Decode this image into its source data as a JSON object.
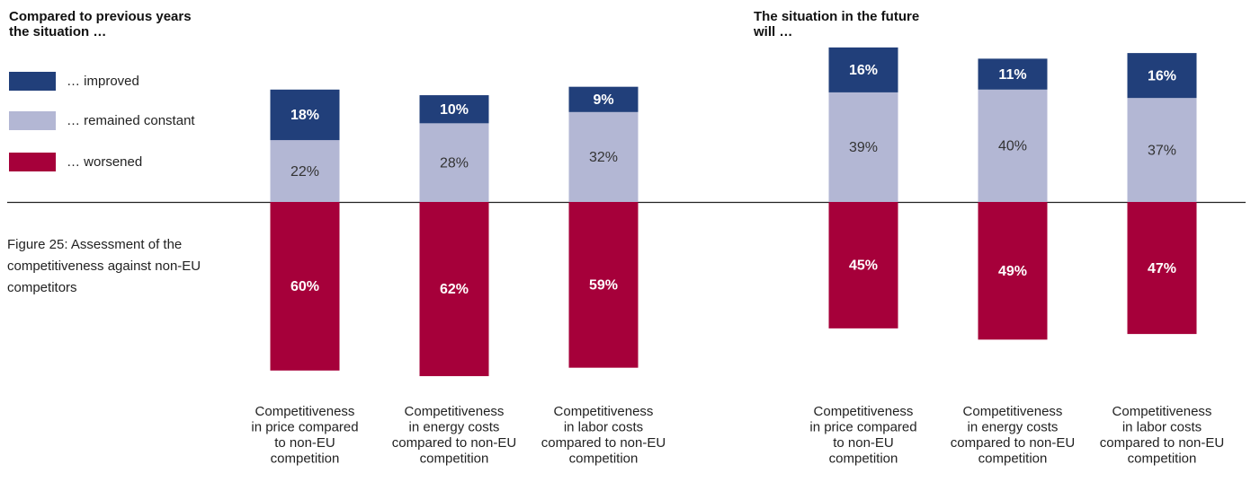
{
  "caption": [
    "Figure 25: Assessment of the",
    "competitiveness against non-EU",
    "competitors"
  ],
  "chart_data": [
    {
      "type": "diverging-bar",
      "title": [
        "Compared to previous years",
        "the situation …"
      ],
      "categories": [
        [
          "Competitiveness",
          "in price compared",
          "to non-EU",
          "competition"
        ],
        [
          "Competitiveness",
          "in energy costs",
          "compared to non-EU",
          "competition"
        ],
        [
          "Competitiveness",
          "in labor costs",
          "compared to non-EU",
          "competition"
        ]
      ],
      "series": [
        {
          "name": "… improved",
          "color": "#213f7a",
          "values": [
            18,
            10,
            9
          ],
          "value_labels": [
            "18%",
            "10%",
            "9%"
          ]
        },
        {
          "name": "… remained constant",
          "color": "#b3b7d4",
          "values": [
            22,
            28,
            32
          ],
          "value_labels": [
            "22%",
            "28%",
            "32%"
          ]
        },
        {
          "name": "… worsened",
          "color": "#a6003a",
          "values": [
            60,
            62,
            59
          ],
          "value_labels": [
            "60%",
            "62%",
            "59%"
          ],
          "below": true
        }
      ]
    },
    {
      "type": "diverging-bar",
      "title": [
        "The situation in the future",
        "will …"
      ],
      "categories": [
        [
          "Competitiveness",
          "in price compared",
          "to non-EU",
          "competition"
        ],
        [
          "Competitiveness",
          "in energy costs",
          "compared to non-EU",
          "competition"
        ],
        [
          "Competitiveness",
          "in labor costs",
          "compared to non-EU",
          "competition"
        ]
      ],
      "series": [
        {
          "color": "#213f7a",
          "values": [
            16,
            11,
            16
          ],
          "value_labels": [
            "16%",
            "11%",
            "16%"
          ]
        },
        {
          "color": "#b3b7d4",
          "values": [
            39,
            40,
            37
          ],
          "value_labels": [
            "39%",
            "40%",
            "37%"
          ]
        },
        {
          "color": "#a6003a",
          "values": [
            45,
            49,
            47
          ],
          "value_labels": [
            "45%",
            "49%",
            "47%"
          ],
          "below": true
        }
      ]
    }
  ]
}
